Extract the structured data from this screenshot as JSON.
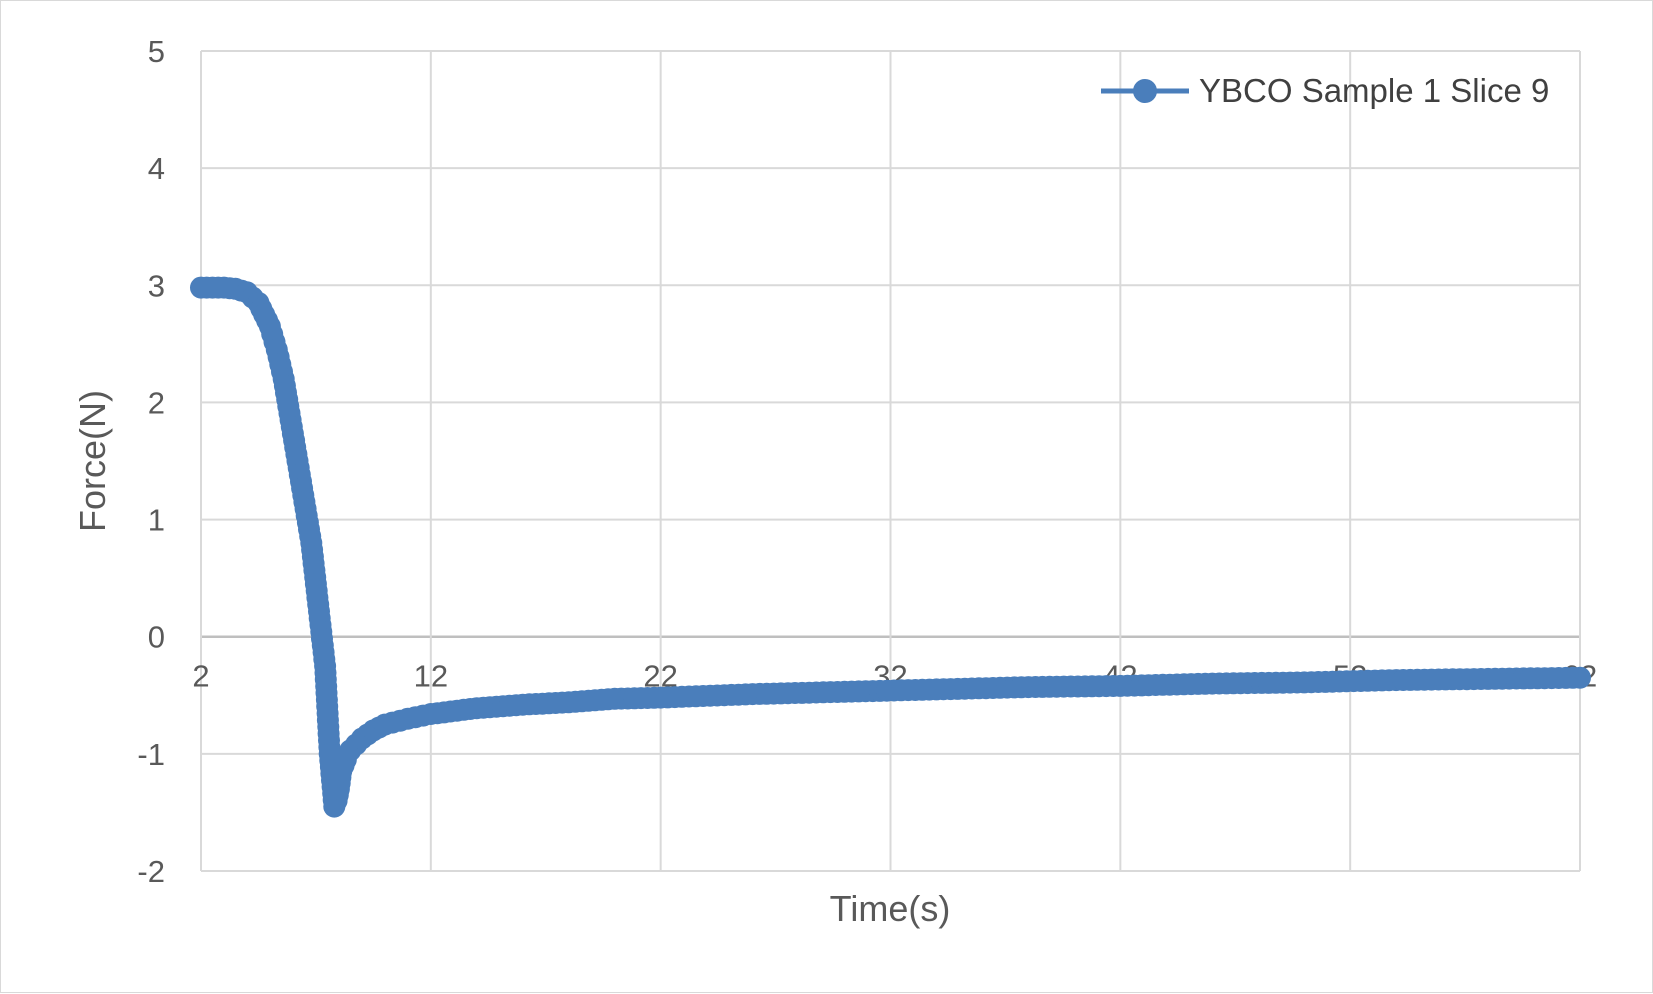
{
  "chart_data": {
    "type": "line",
    "title": "",
    "xlabel": "Time(s)",
    "ylabel": "Force(N)",
    "xlim": [
      2,
      62
    ],
    "ylim": [
      -2,
      5
    ],
    "x_ticks": [
      2,
      12,
      22,
      32,
      42,
      52,
      62
    ],
    "y_ticks": [
      -2,
      -1,
      0,
      1,
      2,
      3,
      4,
      5
    ],
    "grid": true,
    "legend_position": "top-right",
    "series": [
      {
        "name": "YBCO Sample 1 Slice 9",
        "color": "#4a7ebb",
        "marker": "circle",
        "x": [
          2.0,
          2.5,
          3.0,
          3.5,
          4.0,
          4.5,
          5.0,
          5.3,
          5.6,
          5.9,
          6.2,
          6.5,
          6.8,
          7.0,
          7.2,
          7.4,
          7.6,
          7.8,
          7.9,
          8.0,
          8.1,
          8.3,
          8.5,
          9.0,
          9.5,
          10.0,
          11.0,
          12.0,
          14.0,
          16.0,
          18.0,
          20.0,
          22.0,
          26.0,
          30.0,
          34.0,
          38.0,
          42.0,
          46.0,
          50.0,
          54.0,
          58.0,
          62.0
        ],
        "y": [
          2.98,
          2.98,
          2.98,
          2.97,
          2.94,
          2.85,
          2.65,
          2.45,
          2.2,
          1.85,
          1.5,
          1.15,
          0.8,
          0.45,
          0.1,
          -0.25,
          -1.0,
          -1.45,
          -1.4,
          -1.3,
          -1.15,
          -1.05,
          -0.97,
          -0.87,
          -0.8,
          -0.75,
          -0.7,
          -0.66,
          -0.61,
          -0.58,
          -0.56,
          -0.53,
          -0.52,
          -0.49,
          -0.47,
          -0.45,
          -0.43,
          -0.42,
          -0.4,
          -0.39,
          -0.37,
          -0.36,
          -0.35
        ]
      }
    ]
  }
}
